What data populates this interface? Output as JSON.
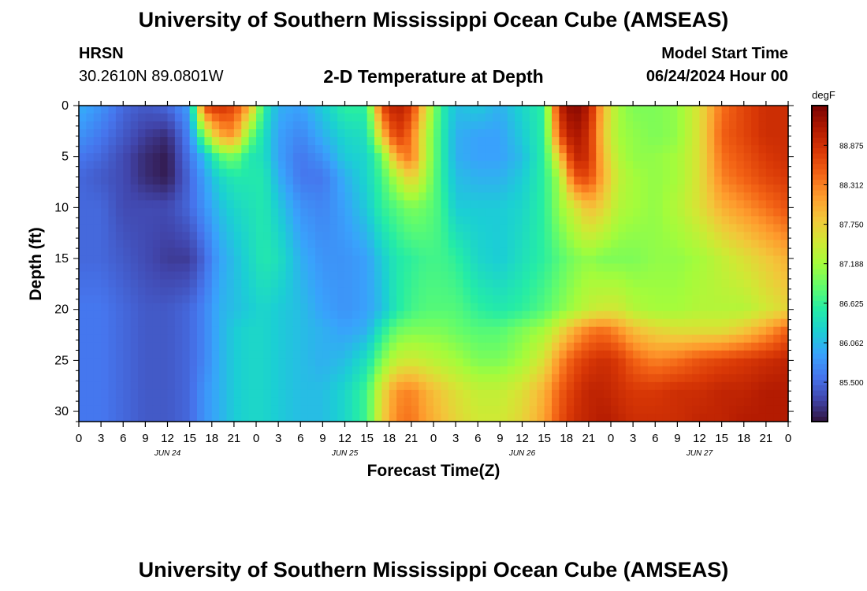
{
  "header": {
    "title": "University of Southern Mississippi Ocean Cube (AMSEAS)",
    "station": "HRSN",
    "coordinates": "30.2610N  89.0801W",
    "subtitle": "2-D Temperature at Depth",
    "model_start_label": "Model Start Time",
    "model_start_value": "06/24/2024 Hour 00"
  },
  "footer": {
    "title": "University of Southern Mississippi Ocean Cube (AMSEAS)"
  },
  "chart_data": {
    "type": "heatmap",
    "title": "2-D Temperature at Depth",
    "xlabel": "Forecast Time(Z)",
    "ylabel": "Depth (ft)",
    "units": "degF",
    "x_tick_labels": [
      "0",
      "3",
      "6",
      "9",
      "12",
      "15",
      "18",
      "21",
      "0",
      "3",
      "6",
      "9",
      "12",
      "15",
      "18",
      "21",
      "0",
      "3",
      "6",
      "9",
      "12",
      "15",
      "18",
      "21",
      "0",
      "3",
      "6",
      "9",
      "12",
      "15",
      "18",
      "21",
      "0"
    ],
    "day_labels": [
      "JUN 24",
      "JUN 25",
      "JUN 26",
      "JUN 27"
    ],
    "y_ticks": [
      0,
      5,
      10,
      15,
      20,
      25,
      30
    ],
    "xlim_hours": [
      0,
      96
    ],
    "ylim": [
      0,
      31
    ],
    "colorbar_ticks": [
      "85.500",
      "86.062",
      "86.625",
      "87.188",
      "87.750",
      "88.312",
      "88.875"
    ],
    "color_range": [
      84.94,
      89.44
    ],
    "colors": [
      "#30123b",
      "#4145ab",
      "#4675ed",
      "#39a2fc",
      "#1bcfd4",
      "#24eca6",
      "#61fc6c",
      "#a4fc3b",
      "#d1e834",
      "#f3c63a",
      "#fe9b2d",
      "#f36315",
      "#d93806",
      "#b11901",
      "#7a0402"
    ],
    "time_hours": [
      0,
      3,
      6,
      9,
      12,
      15,
      17,
      19,
      21,
      23,
      25,
      27,
      30,
      33,
      36,
      39,
      41,
      43,
      45,
      47,
      49,
      51,
      54,
      57,
      60,
      63,
      65,
      67,
      69,
      71,
      73,
      75,
      78,
      81,
      84,
      87,
      90,
      93,
      96
    ],
    "depths_ft": [
      0,
      3,
      5,
      7,
      10,
      15,
      20,
      22,
      25,
      28,
      31
    ],
    "temperature_degF": [
      [
        86.0,
        85.8,
        85.5,
        85.4,
        85.5,
        85.9,
        88.7,
        88.9,
        88.7,
        88.1,
        86.6,
        86.0,
        85.9,
        86.2,
        86.6,
        86.6,
        88.7,
        89.1,
        88.8,
        87.6,
        86.6,
        86.1,
        86.2,
        86.0,
        86.3,
        86.6,
        89.0,
        89.4,
        89.1,
        87.9,
        87.2,
        87.0,
        87.0,
        87.1,
        87.6,
        88.4,
        88.7,
        88.9,
        88.9
      ],
      [
        85.8,
        85.6,
        85.4,
        85.2,
        85.1,
        85.7,
        87.0,
        88.0,
        88.2,
        87.0,
        86.4,
        85.9,
        85.7,
        86.0,
        86.3,
        86.4,
        87.8,
        88.8,
        88.4,
        87.3,
        86.6,
        86.0,
        85.9,
        85.9,
        86.2,
        86.6,
        88.6,
        89.2,
        88.9,
        87.8,
        87.2,
        87.1,
        87.0,
        87.1,
        87.6,
        88.5,
        88.7,
        88.9,
        88.9
      ],
      [
        85.6,
        85.5,
        85.3,
        85.1,
        85.0,
        85.6,
        86.1,
        86.8,
        87.0,
        86.5,
        86.4,
        85.9,
        85.6,
        85.8,
        86.2,
        86.3,
        86.9,
        88.1,
        88.4,
        87.3,
        86.6,
        86.0,
        85.9,
        85.9,
        86.1,
        86.6,
        87.8,
        89.0,
        88.9,
        87.9,
        87.3,
        87.1,
        87.1,
        87.2,
        87.6,
        88.4,
        88.6,
        88.8,
        88.9
      ],
      [
        85.5,
        85.4,
        85.3,
        85.1,
        85.0,
        85.5,
        85.9,
        86.3,
        86.5,
        86.5,
        86.5,
        86.0,
        85.6,
        85.6,
        86.0,
        86.3,
        86.7,
        87.3,
        87.8,
        87.2,
        86.6,
        86.1,
        86.0,
        86.0,
        86.2,
        86.6,
        87.2,
        88.6,
        88.7,
        88.0,
        87.4,
        87.2,
        87.1,
        87.2,
        87.6,
        88.3,
        88.5,
        88.7,
        88.8
      ],
      [
        85.5,
        85.5,
        85.3,
        85.3,
        85.3,
        85.5,
        85.8,
        86.1,
        86.3,
        86.4,
        86.5,
        86.2,
        85.8,
        85.7,
        85.9,
        86.2,
        86.6,
        86.8,
        87.0,
        86.9,
        86.7,
        86.2,
        86.2,
        86.2,
        86.3,
        86.6,
        87.1,
        87.5,
        87.9,
        87.7,
        87.3,
        87.2,
        87.1,
        87.3,
        87.6,
        88.0,
        88.2,
        88.4,
        88.6
      ],
      [
        85.5,
        85.5,
        85.4,
        85.3,
        85.2,
        85.2,
        85.5,
        85.9,
        86.1,
        86.3,
        86.5,
        86.4,
        86.0,
        85.8,
        85.8,
        85.9,
        86.2,
        86.5,
        86.6,
        86.7,
        86.7,
        86.6,
        86.3,
        86.2,
        86.4,
        86.6,
        86.8,
        87.0,
        87.1,
        87.0,
        87.0,
        87.0,
        87.1,
        87.1,
        87.2,
        87.4,
        87.6,
        87.8,
        88.0
      ],
      [
        85.6,
        85.6,
        85.5,
        85.4,
        85.4,
        85.5,
        85.7,
        86.0,
        86.1,
        86.2,
        86.3,
        86.2,
        86.1,
        85.9,
        85.8,
        85.9,
        86.1,
        86.5,
        86.7,
        86.8,
        86.8,
        86.8,
        86.6,
        86.5,
        86.6,
        86.8,
        87.0,
        87.2,
        87.4,
        87.5,
        87.5,
        87.3,
        87.2,
        87.2,
        87.3,
        87.3,
        87.3,
        87.5,
        87.7
      ],
      [
        85.6,
        85.6,
        85.5,
        85.4,
        85.4,
        85.5,
        85.7,
        86.0,
        86.2,
        86.3,
        86.3,
        86.2,
        86.1,
        86.0,
        85.9,
        86.0,
        86.5,
        86.9,
        87.0,
        87.0,
        87.0,
        86.9,
        86.8,
        86.8,
        87.0,
        87.2,
        87.6,
        88.0,
        88.3,
        88.4,
        88.2,
        87.9,
        87.7,
        87.6,
        87.6,
        87.6,
        87.8,
        88.1,
        88.5
      ],
      [
        85.6,
        85.6,
        85.5,
        85.4,
        85.4,
        85.5,
        85.7,
        86.0,
        86.2,
        86.3,
        86.3,
        86.2,
        86.1,
        86.0,
        86.1,
        86.4,
        87.0,
        87.4,
        87.5,
        87.4,
        87.3,
        87.2,
        87.0,
        87.0,
        87.2,
        87.6,
        88.2,
        88.6,
        88.8,
        88.9,
        88.8,
        88.5,
        88.3,
        88.4,
        88.6,
        88.7,
        88.8,
        88.9,
        89.0
      ],
      [
        85.6,
        85.6,
        85.5,
        85.4,
        85.4,
        85.5,
        85.8,
        86.0,
        86.2,
        86.3,
        86.3,
        86.2,
        86.1,
        86.1,
        86.3,
        86.7,
        87.6,
        88.2,
        88.3,
        88.0,
        87.8,
        87.6,
        87.4,
        87.4,
        87.6,
        88.0,
        88.5,
        88.8,
        89.0,
        89.0,
        88.9,
        88.8,
        88.8,
        88.9,
        88.9,
        89.0,
        89.0,
        89.1,
        89.1
      ],
      [
        85.6,
        85.6,
        85.5,
        85.4,
        85.4,
        85.5,
        85.8,
        86.0,
        86.2,
        86.3,
        86.3,
        86.2,
        86.1,
        86.1,
        86.3,
        86.7,
        87.7,
        88.3,
        88.4,
        88.1,
        87.9,
        87.7,
        87.5,
        87.5,
        87.7,
        88.1,
        88.6,
        88.9,
        89.0,
        89.1,
        89.0,
        88.9,
        88.9,
        88.9,
        89.0,
        89.0,
        89.1,
        89.1,
        89.1
      ]
    ]
  }
}
